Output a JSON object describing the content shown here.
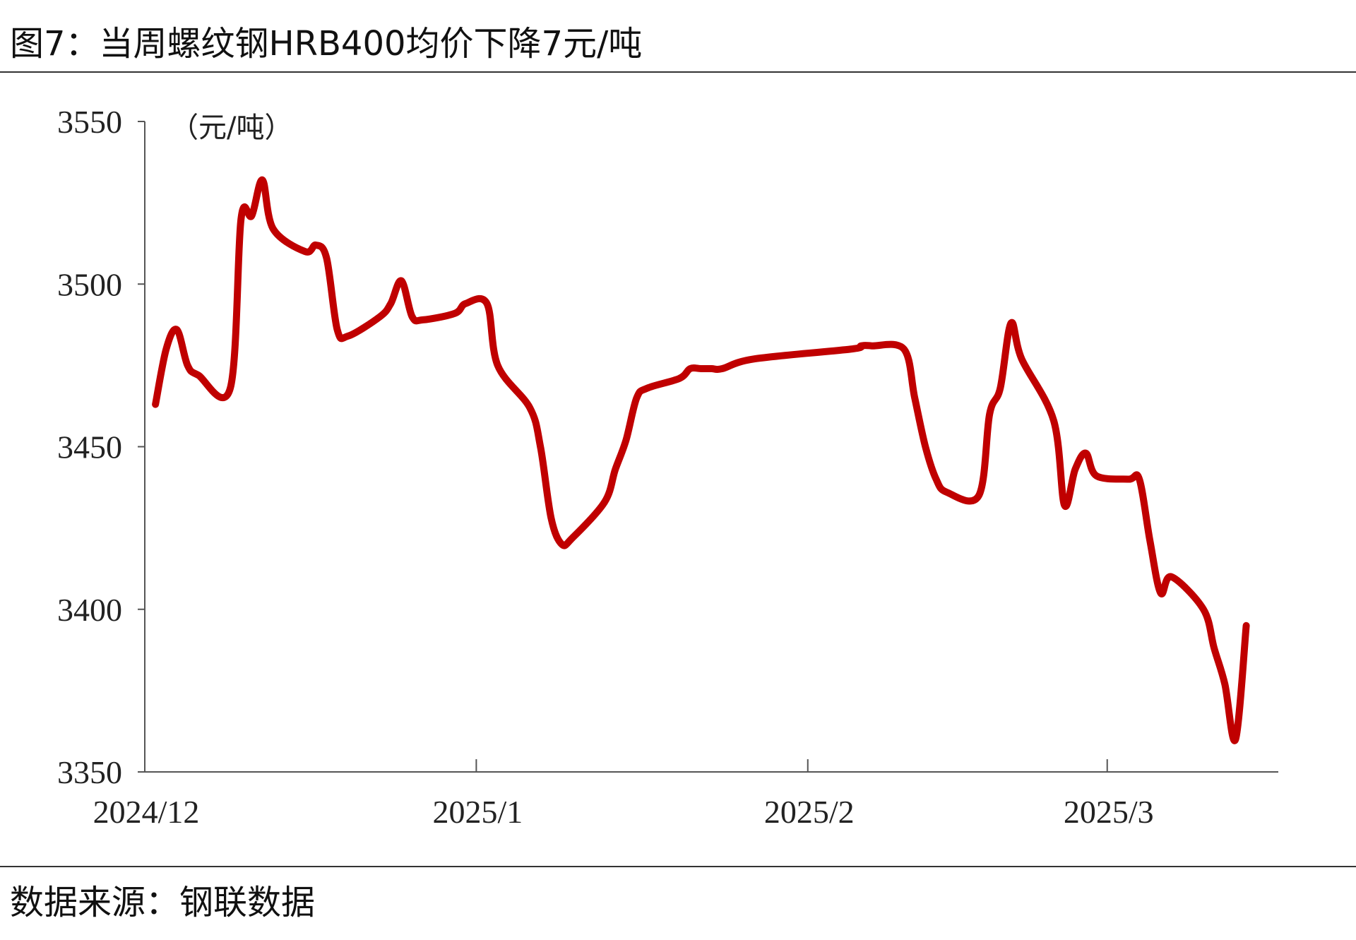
{
  "figure": {
    "title": "图7：当周螺纹钢HRB400均价下降7元/吨",
    "source": "数据来源：钢联数据"
  },
  "chart_data": {
    "type": "line",
    "title": "图7：当周螺纹钢HRB400均价下降7元/吨",
    "unit_label": "（元/吨）",
    "xlabel": "",
    "ylabel": "",
    "ylim": [
      3350,
      3550
    ],
    "yticks": [
      "3350",
      "3400",
      "3450",
      "3500",
      "3550"
    ],
    "xticks": [
      "2024/12",
      "2025/1",
      "2025/2",
      "2025/3"
    ],
    "grid": false,
    "legend": "none",
    "series": [
      {
        "color": "#c00000",
        "x": [
          "2024-12-02",
          "2024-12-03",
          "2024-12-04",
          "2024-12-05",
          "2024-12-06",
          "2024-12-09",
          "2024-12-10",
          "2024-12-11",
          "2024-12-12",
          "2024-12-13",
          "2024-12-16",
          "2024-12-17",
          "2024-12-18",
          "2024-12-19",
          "2024-12-20",
          "2024-12-23",
          "2024-12-24",
          "2024-12-25",
          "2024-12-26",
          "2024-12-27",
          "2024-12-30",
          "2024-12-31",
          "2025-01-02",
          "2025-01-03",
          "2025-01-06",
          "2025-01-07",
          "2025-01-08",
          "2025-01-09",
          "2025-01-10",
          "2025-01-13",
          "2025-01-14",
          "2025-01-15",
          "2025-01-16",
          "2025-01-17",
          "2025-01-20",
          "2025-01-21",
          "2025-01-22",
          "2025-01-23",
          "2025-01-24",
          "2025-01-27",
          "2025-02-05",
          "2025-02-06",
          "2025-02-07",
          "2025-02-10",
          "2025-02-11",
          "2025-02-12",
          "2025-02-13",
          "2025-02-14",
          "2025-02-17",
          "2025-02-18",
          "2025-02-19",
          "2025-02-20",
          "2025-02-21",
          "2025-02-24",
          "2025-02-25",
          "2025-02-26",
          "2025-02-27",
          "2025-02-28",
          "2025-03-03",
          "2025-03-04",
          "2025-03-05",
          "2025-03-06",
          "2025-03-07",
          "2025-03-10",
          "2025-03-11",
          "2025-03-12",
          "2025-03-13",
          "2025-03-14"
        ],
        "values": [
          3463,
          3480,
          3486,
          3475,
          3472,
          3468,
          3520,
          3521,
          3532,
          3517,
          3510,
          3512,
          3508,
          3486,
          3484,
          3490,
          3494,
          3501,
          3490,
          3489,
          3491,
          3494,
          3494,
          3475,
          3462,
          3450,
          3428,
          3420,
          3422,
          3433,
          3443,
          3452,
          3465,
          3468,
          3471,
          3474,
          3474,
          3474,
          3474,
          3477,
          3480,
          3481,
          3481,
          3480,
          3465,
          3450,
          3440,
          3436,
          3435,
          3460,
          3468,
          3488,
          3477,
          3458,
          3432,
          3443,
          3448,
          3441,
          3440,
          3440,
          3421,
          3405,
          3410,
          3400,
          3388,
          3377,
          3360,
          3395
        ]
      }
    ]
  }
}
